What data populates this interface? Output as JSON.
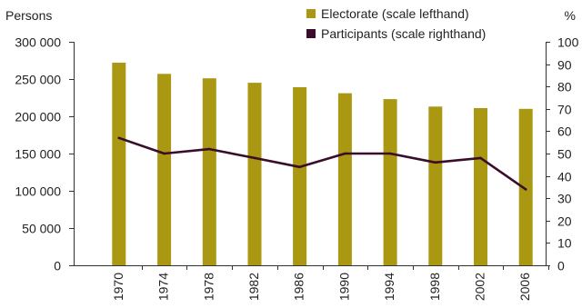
{
  "chart_data": {
    "type": "bar",
    "categories": [
      "1970",
      "1974",
      "1978",
      "1982",
      "1986",
      "1990",
      "1994",
      "1998",
      "2002",
      "2006"
    ],
    "series": [
      {
        "name": "Electorate (scale lefthand)",
        "type": "bar",
        "axis": "left",
        "color": "#aa9812",
        "values": [
          272000,
          257000,
          251000,
          245000,
          239000,
          231000,
          223000,
          213000,
          211000,
          210000
        ]
      },
      {
        "name": "Participants (scale righthand)",
        "type": "line",
        "axis": "right",
        "color": "#3a0d2a",
        "values": [
          57,
          50,
          52,
          48,
          44,
          50,
          50,
          46,
          48,
          34
        ]
      }
    ],
    "left_axis": {
      "label": "Persons",
      "range": [
        0,
        300000
      ],
      "ticks": [
        0,
        50000,
        100000,
        150000,
        200000,
        250000,
        300000
      ],
      "tick_labels": [
        "0",
        "50 000",
        "100 000",
        "150 000",
        "200 000",
        "250 000",
        "300 000"
      ]
    },
    "right_axis": {
      "label": "%",
      "range": [
        0,
        100
      ],
      "ticks": [
        0,
        10,
        20,
        30,
        40,
        50,
        60,
        70,
        80,
        90,
        100
      ],
      "tick_labels": [
        "0",
        "10",
        "20",
        "30",
        "40",
        "50",
        "60",
        "70",
        "80",
        "90",
        "100"
      ]
    },
    "grid": false,
    "legend_position": "top-right"
  }
}
